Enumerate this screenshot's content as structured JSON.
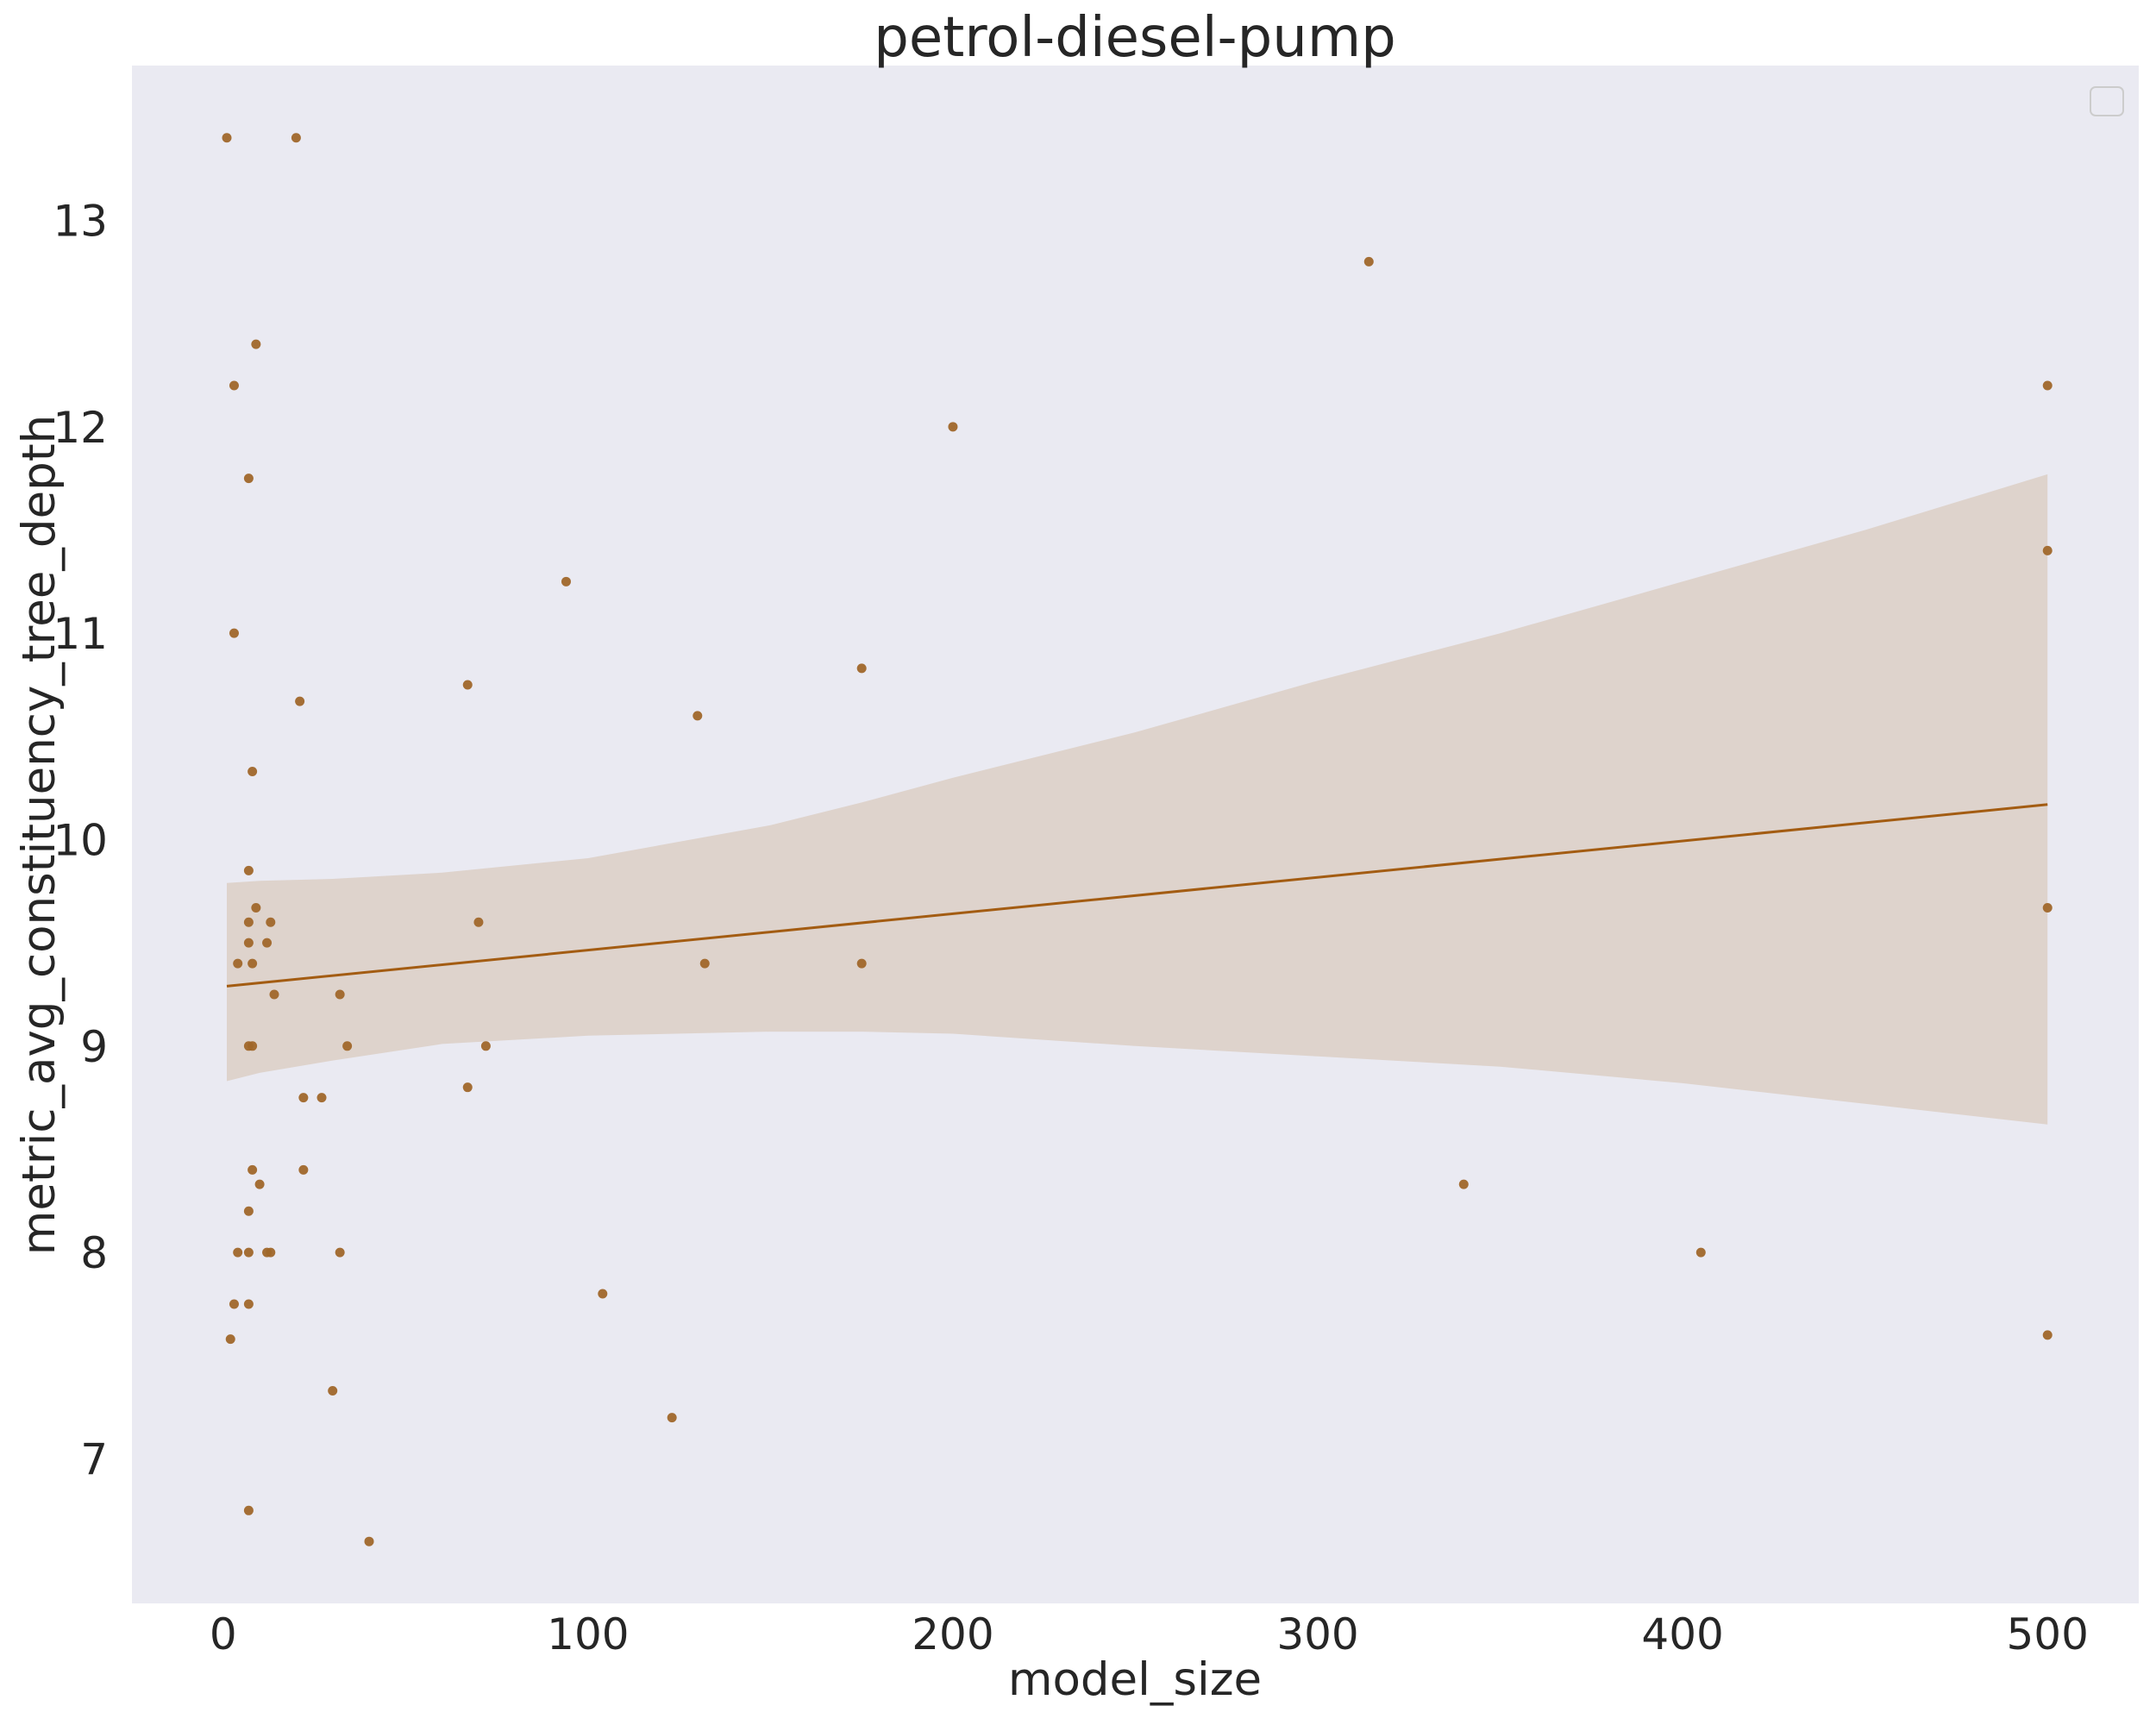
{
  "chart_data": {
    "type": "scatter",
    "title": "petrol-diesel-pump",
    "xlabel": "model_size",
    "ylabel": "metric_avg_constituency_tree_depth",
    "xlim": [
      -25,
      525
    ],
    "ylim": [
      6.3,
      13.75
    ],
    "xticks": [
      0,
      100,
      200,
      300,
      400,
      500
    ],
    "yticks": [
      7,
      8,
      9,
      10,
      11,
      12,
      13
    ],
    "grid": false,
    "legend": "top-right (empty)",
    "colors": {
      "background": "#eaeaf2",
      "points": "#a0672a",
      "line": "#a35c12",
      "band": "#dccfc5"
    },
    "points": [
      {
        "x": 1,
        "y": 13.4
      },
      {
        "x": 20,
        "y": 13.4
      },
      {
        "x": 3,
        "y": 12.2
      },
      {
        "x": 9,
        "y": 12.4
      },
      {
        "x": 7,
        "y": 11.75
      },
      {
        "x": 3,
        "y": 11.0
      },
      {
        "x": 21,
        "y": 10.67
      },
      {
        "x": 8,
        "y": 10.33
      },
      {
        "x": 7,
        "y": 9.85
      },
      {
        "x": 9,
        "y": 9.67
      },
      {
        "x": 7,
        "y": 9.6
      },
      {
        "x": 13,
        "y": 9.6
      },
      {
        "x": 7,
        "y": 9.5
      },
      {
        "x": 12,
        "y": 9.5
      },
      {
        "x": 4,
        "y": 9.4
      },
      {
        "x": 8,
        "y": 9.4
      },
      {
        "x": 14,
        "y": 9.25
      },
      {
        "x": 32,
        "y": 9.25
      },
      {
        "x": 7,
        "y": 9.0
      },
      {
        "x": 8,
        "y": 9.0
      },
      {
        "x": 34,
        "y": 9.0
      },
      {
        "x": 22,
        "y": 8.75
      },
      {
        "x": 27,
        "y": 8.75
      },
      {
        "x": 8,
        "y": 8.4
      },
      {
        "x": 22,
        "y": 8.4
      },
      {
        "x": 10,
        "y": 8.33
      },
      {
        "x": 7,
        "y": 8.2
      },
      {
        "x": 4,
        "y": 8.0
      },
      {
        "x": 7,
        "y": 8.0
      },
      {
        "x": 12,
        "y": 8.0
      },
      {
        "x": 13,
        "y": 8.0
      },
      {
        "x": 32,
        "y": 8.0
      },
      {
        "x": 3,
        "y": 7.75
      },
      {
        "x": 7,
        "y": 7.75
      },
      {
        "x": 2,
        "y": 7.58
      },
      {
        "x": 30,
        "y": 7.33
      },
      {
        "x": 7,
        "y": 6.75
      },
      {
        "x": 40,
        "y": 6.6
      },
      {
        "x": 67,
        "y": 10.75
      },
      {
        "x": 70,
        "y": 9.6
      },
      {
        "x": 72,
        "y": 9.0
      },
      {
        "x": 67,
        "y": 8.8
      },
      {
        "x": 94,
        "y": 11.25
      },
      {
        "x": 104,
        "y": 7.8
      },
      {
        "x": 123,
        "y": 7.2
      },
      {
        "x": 130,
        "y": 10.6
      },
      {
        "x": 132,
        "y": 9.4
      },
      {
        "x": 175,
        "y": 10.83
      },
      {
        "x": 175,
        "y": 9.4
      },
      {
        "x": 200,
        "y": 12.0
      },
      {
        "x": 314,
        "y": 12.8
      },
      {
        "x": 340,
        "y": 8.33
      },
      {
        "x": 405,
        "y": 8.0
      },
      {
        "x": 500,
        "y": 12.2
      },
      {
        "x": 500,
        "y": 11.4
      },
      {
        "x": 500,
        "y": 9.67
      },
      {
        "x": 500,
        "y": 7.6
      }
    ],
    "regression": {
      "x": [
        1,
        500
      ],
      "y": [
        9.29,
        10.17
      ]
    },
    "confidence_band": {
      "x": [
        1,
        10,
        30,
        60,
        100,
        150,
        175,
        200,
        250,
        300,
        350,
        400,
        450,
        500
      ],
      "upper": [
        9.79,
        9.8,
        9.81,
        9.84,
        9.91,
        10.07,
        10.18,
        10.3,
        10.52,
        10.77,
        11.0,
        11.25,
        11.5,
        11.77
      ],
      "lower": [
        8.83,
        8.87,
        8.93,
        9.01,
        9.05,
        9.07,
        9.07,
        9.06,
        9.0,
        8.95,
        8.9,
        8.82,
        8.72,
        8.62
      ]
    }
  }
}
